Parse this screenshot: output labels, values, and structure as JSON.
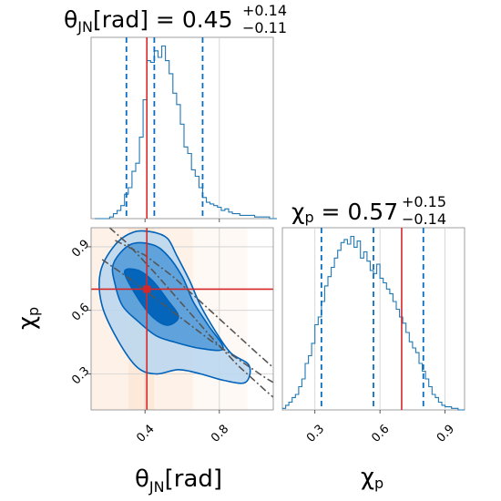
{
  "colors": {
    "posterior": "#1f77b4",
    "quantile_line": "#0a6ec0",
    "injection": "#d62728",
    "contour_dark": "#0062b8",
    "contour_mid": "#3f8fd4",
    "contour_light": "#b9d6ef",
    "prior_density": "#f4a46a",
    "reference_curve": "#555555",
    "grid": "#cfcfcf"
  },
  "chart_data": [
    {
      "type": "histogram",
      "panel": "top-left",
      "parameter": "theta_JN",
      "title": {
        "symbol": "θ",
        "subscript": "JN",
        "unit": "[rad]",
        "value": "0.45",
        "upper": "+0.14",
        "lower": "−0.11"
      },
      "xlim": [
        0.11,
        1.09
      ],
      "quantiles": [
        0.3,
        0.45,
        0.71
      ],
      "injection": 0.41,
      "bin_edges_start": 0.13,
      "bin_width": 0.02,
      "counts": [
        0,
        0,
        0,
        0,
        0.01,
        0.03,
        0.05,
        0.08,
        0.15,
        0.19,
        0.29,
        0.34,
        0.5,
        0.73,
        0.97,
        0.96,
        1.03,
        0.99,
        1.06,
        0.97,
        0.89,
        0.77,
        0.7,
        0.58,
        0.44,
        0.4,
        0.3,
        0.26,
        0.19,
        0.13,
        0.1,
        0.09,
        0.08,
        0.07,
        0.05,
        0.06,
        0.04,
        0.03,
        0.03,
        0.02,
        0.02,
        0.02,
        0.02,
        0.01,
        0.01,
        0.01,
        0.01,
        0,
        0
      ]
    },
    {
      "type": "histogram",
      "panel": "bottom-right",
      "parameter": "chi_p",
      "title": {
        "symbol": "χ",
        "subscript": "p",
        "value": "0.57",
        "upper": "+0.15",
        "lower": "−0.14"
      },
      "xlim": [
        0.15,
        0.99
      ],
      "xticks": [
        "0.3",
        "0.6",
        "0.9"
      ],
      "quantiles": [
        0.33,
        0.57,
        0.8
      ],
      "injection": 0.7,
      "bin_edges_start": 0.15,
      "bin_width": 0.015,
      "counts": [
        0.01,
        0.03,
        0.05,
        0.08,
        0.1,
        0.15,
        0.2,
        0.3,
        0.35,
        0.43,
        0.55,
        0.6,
        0.7,
        0.8,
        0.86,
        0.92,
        0.98,
        1.03,
        1.08,
        1.1,
        1.07,
        1.12,
        1.05,
        1.09,
        0.98,
        1.02,
        0.96,
        0.9,
        0.88,
        0.94,
        0.85,
        0.82,
        0.78,
        0.75,
        0.7,
        0.65,
        0.6,
        0.56,
        0.5,
        0.44,
        0.4,
        0.37,
        0.3,
        0.25,
        0.2,
        0.15,
        0.1,
        0.08,
        0.05,
        0.03,
        0.02,
        0.02,
        0.01,
        0.01,
        0,
        0
      ]
    },
    {
      "type": "contour",
      "panel": "bottom-left",
      "x_parameter": "theta_JN",
      "y_parameter": "chi_p",
      "xlim": [
        0.11,
        1.09
      ],
      "ylim": [
        0.13,
        0.99
      ],
      "xticks": [
        "0.4",
        "0.8"
      ],
      "yticks": [
        "0.3",
        "0.6",
        "0.9"
      ],
      "injection": {
        "x": 0.41,
        "y": 0.7
      },
      "contours": [
        {
          "level": "90%",
          "points": [
            [
              0.24,
              0.91
            ],
            [
              0.34,
              0.97
            ],
            [
              0.44,
              0.97
            ],
            [
              0.52,
              0.94
            ],
            [
              0.57,
              0.86
            ],
            [
              0.64,
              0.74
            ],
            [
              0.7,
              0.62
            ],
            [
              0.78,
              0.5
            ],
            [
              0.86,
              0.4
            ],
            [
              0.96,
              0.34
            ],
            [
              0.94,
              0.26
            ],
            [
              0.82,
              0.27
            ],
            [
              0.7,
              0.3
            ],
            [
              0.58,
              0.32
            ],
            [
              0.46,
              0.3
            ],
            [
              0.36,
              0.33
            ],
            [
              0.26,
              0.45
            ],
            [
              0.17,
              0.62
            ],
            [
              0.16,
              0.78
            ]
          ]
        },
        {
          "level": "68%",
          "points": [
            [
              0.23,
              0.82
            ],
            [
              0.32,
              0.91
            ],
            [
              0.44,
              0.91
            ],
            [
              0.52,
              0.86
            ],
            [
              0.6,
              0.76
            ],
            [
              0.66,
              0.64
            ],
            [
              0.74,
              0.53
            ],
            [
              0.82,
              0.42
            ],
            [
              0.7,
              0.42
            ],
            [
              0.56,
              0.45
            ],
            [
              0.46,
              0.48
            ],
            [
              0.36,
              0.55
            ],
            [
              0.28,
              0.62
            ],
            [
              0.24,
              0.72
            ]
          ]
        },
        {
          "level": "39%",
          "points": [
            [
              0.29,
              0.78
            ],
            [
              0.36,
              0.79
            ],
            [
              0.44,
              0.74
            ],
            [
              0.52,
              0.65
            ],
            [
              0.58,
              0.57
            ],
            [
              0.52,
              0.53
            ],
            [
              0.44,
              0.57
            ],
            [
              0.36,
              0.66
            ]
          ]
        }
      ],
      "reference_curves": [
        {
          "points": [
            [
              0.17,
              0.84
            ],
            [
              0.3,
              0.76
            ],
            [
              0.45,
              0.66
            ],
            [
              0.6,
              0.56
            ],
            [
              0.75,
              0.46
            ],
            [
              0.9,
              0.37
            ],
            [
              1.05,
              0.28
            ],
            [
              1.09,
              0.26
            ]
          ]
        },
        {
          "points": [
            [
              0.24,
              0.93
            ],
            [
              0.4,
              0.86
            ],
            [
              0.55,
              0.76
            ],
            [
              0.7,
              0.64
            ],
            [
              0.85,
              0.52
            ],
            [
              1.0,
              0.4
            ],
            [
              1.09,
              0.33
            ]
          ]
        },
        {
          "points": [
            [
              0.21,
              0.99
            ],
            [
              0.3,
              0.92
            ],
            [
              0.45,
              0.78
            ],
            [
              0.6,
              0.63
            ],
            [
              0.75,
              0.48
            ],
            [
              0.9,
              0.34
            ],
            [
              1.05,
              0.22
            ],
            [
              1.09,
              0.19
            ]
          ]
        }
      ],
      "prior_bands": [
        {
          "x": [
            0.11,
            0.31
          ],
          "alpha": 0.35
        },
        {
          "x": [
            0.31,
            0.45
          ],
          "alpha": 0.55
        },
        {
          "x": [
            0.45,
            0.66
          ],
          "alpha": 0.35
        },
        {
          "x": [
            0.66,
            0.95
          ],
          "alpha": 0.15
        }
      ]
    }
  ],
  "axis_labels": {
    "theta_x": {
      "symbol": "θ",
      "subscript": "JN",
      "unit": "[rad]"
    },
    "chi_x": {
      "symbol": "χ",
      "subscript": "p"
    },
    "chi_y": {
      "symbol": "χ",
      "subscript": "p"
    }
  }
}
